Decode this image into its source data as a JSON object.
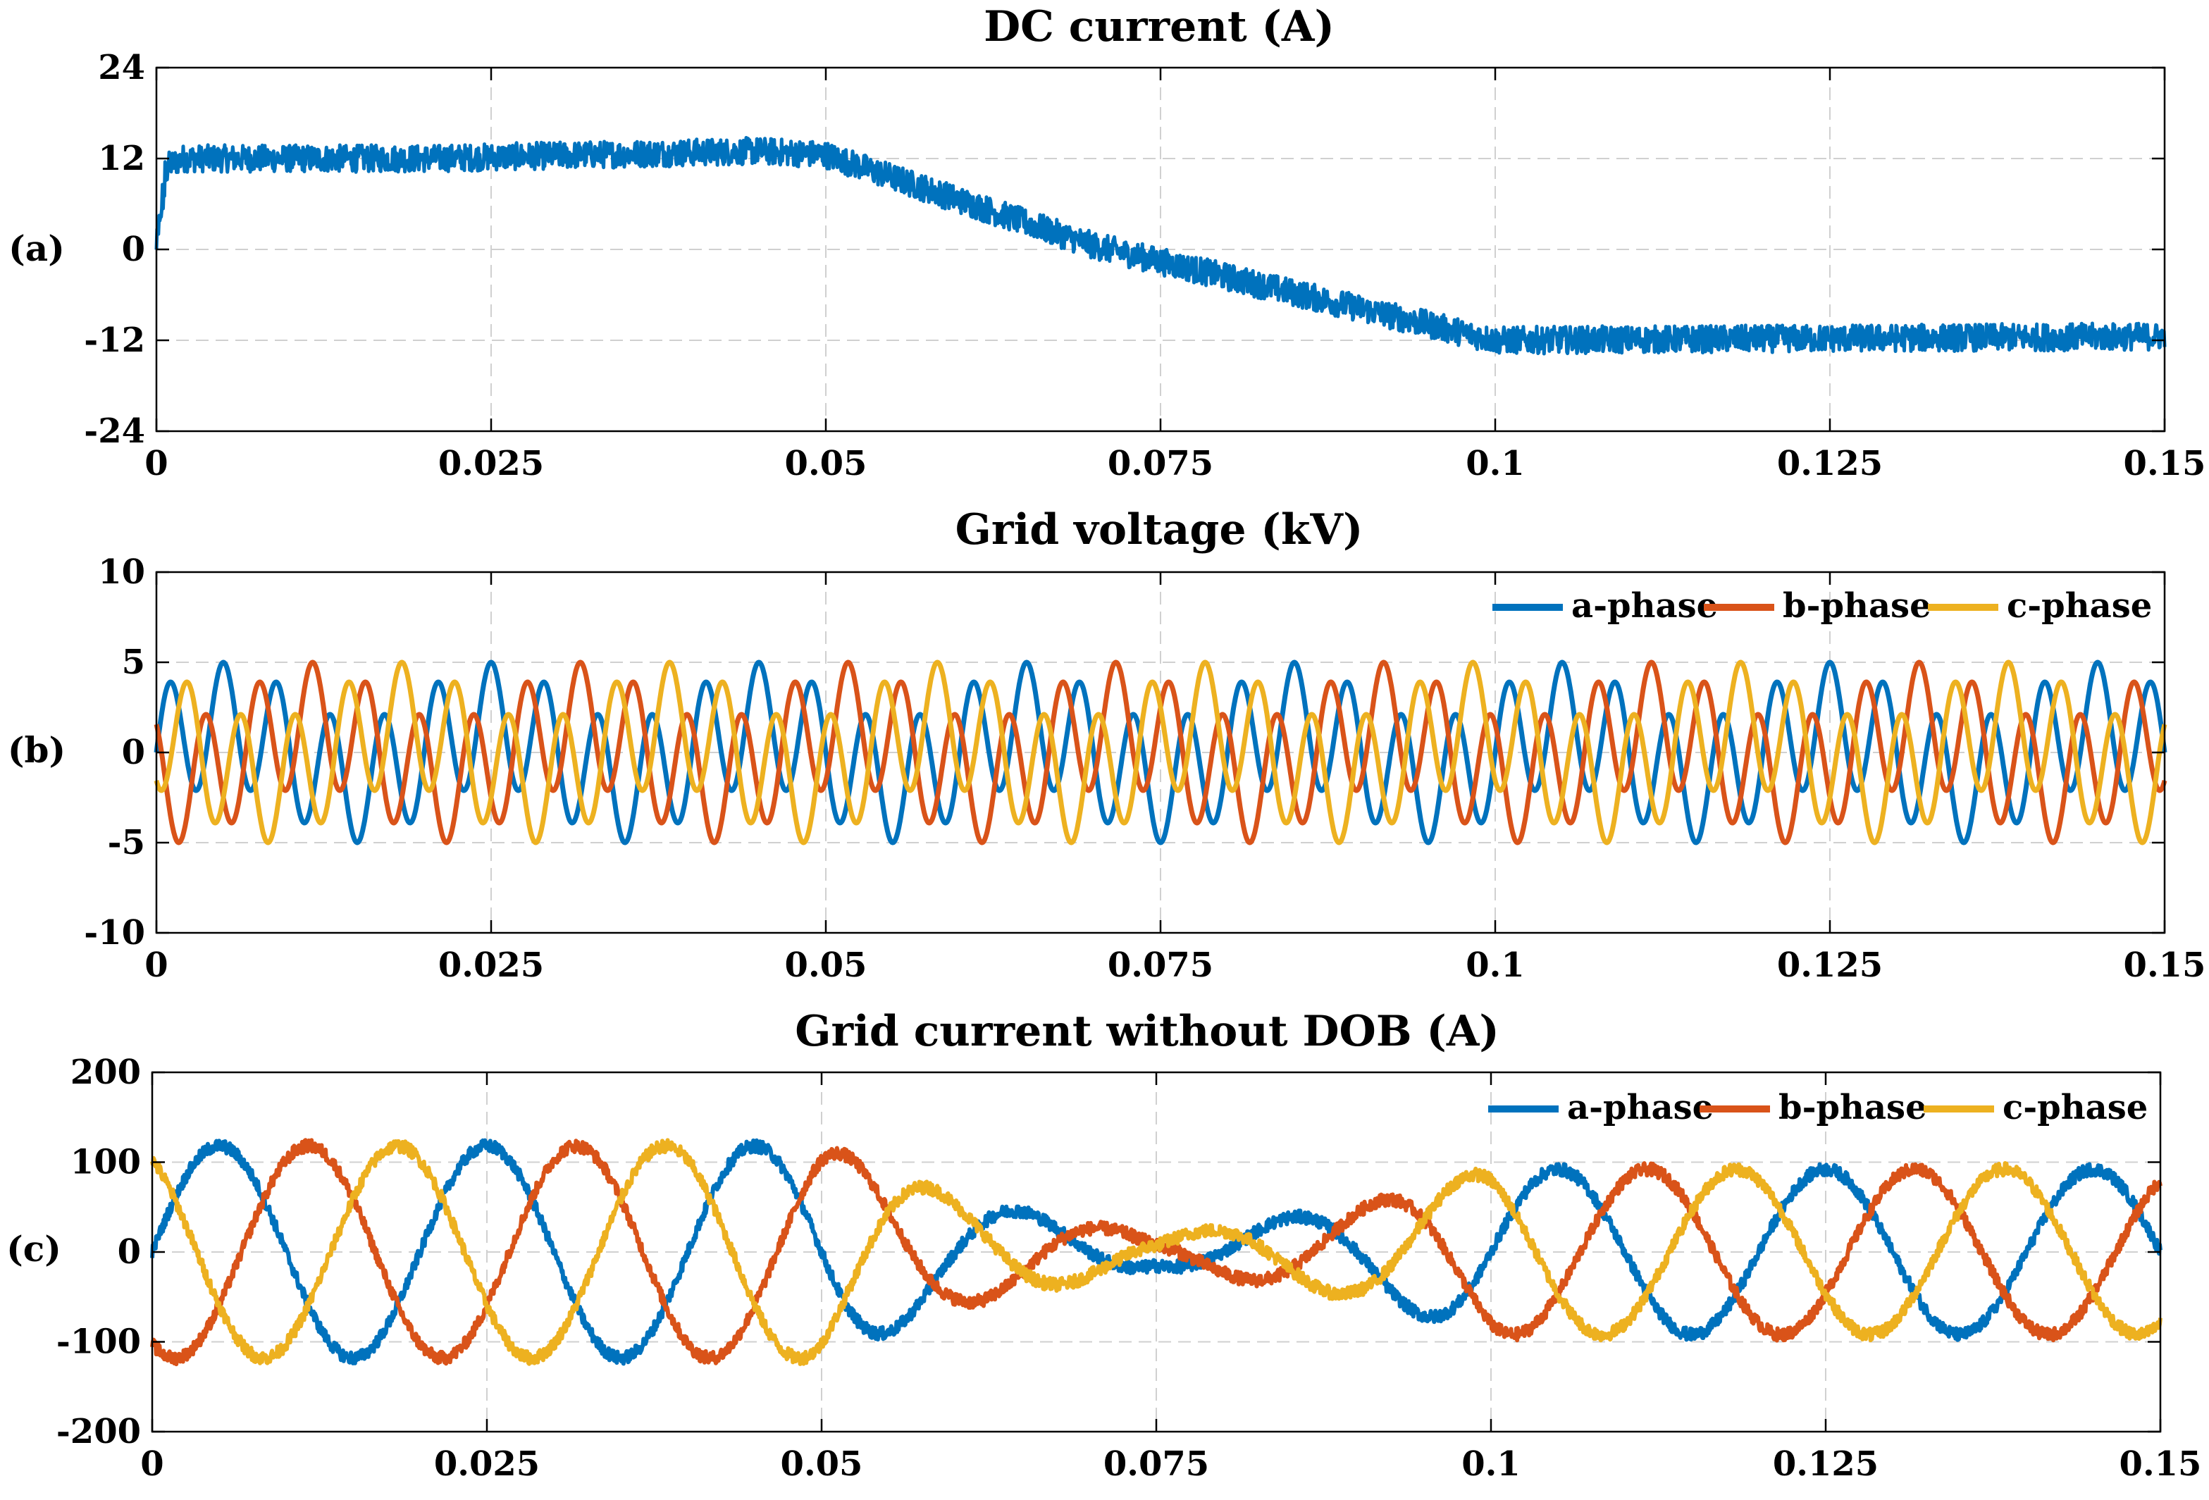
{
  "figure": {
    "panel_labels": [
      "(a)",
      "(b)",
      "(c)"
    ]
  },
  "colors": {
    "a_phase": "#0072BD",
    "b_phase": "#D95319",
    "c_phase": "#EDB120",
    "dc": "#0072BD"
  },
  "chart_data": [
    {
      "id": "a",
      "type": "line",
      "title": "DC current (A)",
      "xlabel": "",
      "ylabel": "",
      "xlim": [
        0,
        0.15
      ],
      "ylim": [
        -24,
        24
      ],
      "xticks": [
        0,
        0.025,
        0.05,
        0.075,
        0.1,
        0.125,
        0.15
      ],
      "xtick_labels": [
        "0",
        "0.025",
        "0.05",
        "0.075",
        "0.1",
        "0.125",
        "0.15"
      ],
      "yticks": [
        24,
        12,
        0,
        -12,
        -24
      ],
      "ytick_labels": [
        "24",
        "12",
        "0",
        "-12",
        "-24"
      ],
      "grid": true,
      "legend": null,
      "series": [
        {
          "name": "DC current",
          "color_key": "dc",
          "noise": 1.8,
          "envelope": {
            "x": [
              0,
              0.0008,
              0.002,
              0.02,
              0.045,
              0.05,
              0.07,
              0.1,
              0.15
            ],
            "y": [
              0,
              11,
              12,
              12,
              13,
              12.5,
              0.5,
              -12,
              -11.5
            ]
          }
        }
      ]
    },
    {
      "id": "b",
      "type": "line",
      "title": "Grid voltage (kV)",
      "xlabel": "",
      "ylabel": "",
      "xlim": [
        0,
        0.15
      ],
      "ylim": [
        -10,
        10
      ],
      "xticks": [
        0,
        0.025,
        0.05,
        0.075,
        0.1,
        0.125,
        0.15
      ],
      "xtick_labels": [
        "0",
        "0.025",
        "0.05",
        "0.075",
        "0.1",
        "0.125",
        "0.15"
      ],
      "yticks": [
        10,
        5,
        0,
        -5,
        -10
      ],
      "ytick_labels": [
        "10",
        "5",
        "0",
        "-5",
        "-10"
      ],
      "grid": true,
      "legend": {
        "position": "top-right",
        "entries": [
          "a-phase",
          "b-phase",
          "c-phase"
        ]
      },
      "series": [
        {
          "name": "a-phase",
          "color_key": "a_phase",
          "fundamental_hz": 50,
          "fundamental_amp": 1.6,
          "harmonic_order": 5,
          "harmonic_amp": 3.4,
          "phase_deg": 0
        },
        {
          "name": "b-phase",
          "color_key": "b_phase",
          "fundamental_hz": 50,
          "fundamental_amp": 1.6,
          "harmonic_order": 5,
          "harmonic_amp": 3.4,
          "phase_deg": -120
        },
        {
          "name": "c-phase",
          "color_key": "c_phase",
          "fundamental_hz": 50,
          "fundamental_amp": 1.6,
          "harmonic_order": 5,
          "harmonic_amp": 3.4,
          "phase_deg": 120
        }
      ]
    },
    {
      "id": "c",
      "type": "line",
      "title": "Grid current without DOB (A)",
      "xlabel": "",
      "ylabel": "",
      "xlim": [
        0,
        0.15
      ],
      "ylim": [
        -200,
        200
      ],
      "xticks": [
        0,
        0.025,
        0.05,
        0.075,
        0.1,
        0.125,
        0.15
      ],
      "xtick_labels": [
        "0",
        "0.025",
        "0.05",
        "0.075",
        "0.1",
        "0.125",
        "0.15"
      ],
      "yticks": [
        200,
        100,
        0,
        -100,
        -200
      ],
      "ytick_labels": [
        "200",
        "100",
        "0",
        "-100",
        "-200"
      ],
      "grid": true,
      "legend": {
        "position": "top-right",
        "entries": [
          "a-phase",
          "b-phase",
          "c-phase"
        ]
      },
      "amplitude_envelope": {
        "x": [
          0,
          0.05,
          0.06,
          0.075,
          0.09,
          0.1,
          0.15
        ],
        "y": [
          118,
          118,
          60,
          15,
          50,
          92,
          92
        ]
      },
      "freq_hz": 50,
      "ripple_amp": 7,
      "series": [
        {
          "name": "a-phase",
          "color_key": "a_phase",
          "phase_deg": 0
        },
        {
          "name": "b-phase",
          "color_key": "b_phase",
          "phase_deg": -120
        },
        {
          "name": "c-phase",
          "color_key": "c_phase",
          "phase_deg": 120
        }
      ]
    }
  ]
}
